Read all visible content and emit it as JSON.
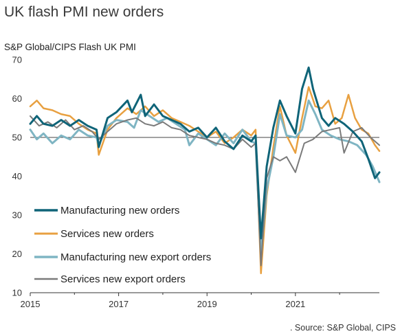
{
  "chart_data": {
    "type": "line",
    "title": "UK flash PMI new orders",
    "subtitle": "S&P Global/CIPS Flash UK PMI",
    "source": ". Source: S&P Global, CIPS",
    "ylim": [
      10,
      70
    ],
    "yticks": [
      10,
      20,
      30,
      40,
      50,
      60,
      70
    ],
    "xlim": [
      2015.0,
      2022.9
    ],
    "xticks": [
      2015,
      2017,
      2019,
      2021
    ],
    "reference_line": 50,
    "legend_position": "lower-left",
    "series": [
      {
        "name": "Manufacturing new orders",
        "color": "#0f6478",
        "width": 3,
        "x": [
          2015.0,
          2015.15,
          2015.3,
          2015.5,
          2015.7,
          2015.9,
          2016.1,
          2016.3,
          2016.5,
          2016.55,
          2016.75,
          2016.95,
          2017.2,
          2017.3,
          2017.5,
          2017.6,
          2017.8,
          2018.0,
          2018.2,
          2018.4,
          2018.6,
          2018.8,
          2019.0,
          2019.2,
          2019.4,
          2019.6,
          2019.8,
          2020.0,
          2020.1,
          2020.22,
          2020.35,
          2020.5,
          2020.65,
          2020.8,
          2021.0,
          2021.15,
          2021.3,
          2021.4,
          2021.6,
          2021.75,
          2021.9,
          2022.1,
          2022.3,
          2022.5,
          2022.65,
          2022.8,
          2022.9
        ],
        "values": [
          53.5,
          55.5,
          53.5,
          53.0,
          54.5,
          53.0,
          54.5,
          53.0,
          52.0,
          47.5,
          55.0,
          56.5,
          59.5,
          56.5,
          61.0,
          55.5,
          58.5,
          55.5,
          54.5,
          53.5,
          51.5,
          52.5,
          50.0,
          52.5,
          49.0,
          47.0,
          50.5,
          49.0,
          50.5,
          24.0,
          42.5,
          52.5,
          59.5,
          55.5,
          51.0,
          62.5,
          68.0,
          62.5,
          55.0,
          53.0,
          55.0,
          53.5,
          51.5,
          49.0,
          44.5,
          39.5,
          41.0
        ]
      },
      {
        "name": "Services new orders",
        "color": "#e8a040",
        "width": 2.5,
        "x": [
          2015.0,
          2015.15,
          2015.3,
          2015.5,
          2015.7,
          2015.9,
          2016.1,
          2016.3,
          2016.5,
          2016.55,
          2016.75,
          2016.95,
          2017.2,
          2017.4,
          2017.6,
          2017.8,
          2018.0,
          2018.2,
          2018.4,
          2018.6,
          2018.8,
          2019.0,
          2019.2,
          2019.4,
          2019.6,
          2019.8,
          2020.0,
          2020.1,
          2020.22,
          2020.35,
          2020.5,
          2020.65,
          2020.8,
          2021.0,
          2021.15,
          2021.3,
          2021.45,
          2021.6,
          2021.75,
          2021.9,
          2022.05,
          2022.2,
          2022.35,
          2022.5,
          2022.65,
          2022.8,
          2022.9
        ],
        "values": [
          58.0,
          59.5,
          57.5,
          57.0,
          56.0,
          55.5,
          53.5,
          52.0,
          51.0,
          45.5,
          52.0,
          55.0,
          57.5,
          56.0,
          58.0,
          55.5,
          57.0,
          55.0,
          54.0,
          53.0,
          51.5,
          50.0,
          51.5,
          48.5,
          50.0,
          52.0,
          50.5,
          52.0,
          15.0,
          35.0,
          47.5,
          58.0,
          50.5,
          46.0,
          55.0,
          63.0,
          58.0,
          57.5,
          59.5,
          53.5,
          55.0,
          61.0,
          55.0,
          52.0,
          51.0,
          48.0,
          46.5
        ]
      },
      {
        "name": "Manufacturing new export orders",
        "color": "#7fb5c3",
        "width": 3,
        "x": [
          2015.0,
          2015.15,
          2015.3,
          2015.5,
          2015.7,
          2015.9,
          2016.1,
          2016.3,
          2016.5,
          2016.55,
          2016.75,
          2016.95,
          2017.2,
          2017.35,
          2017.5,
          2017.7,
          2017.9,
          2018.1,
          2018.3,
          2018.5,
          2018.6,
          2018.8,
          2019.0,
          2019.2,
          2019.4,
          2019.6,
          2019.8,
          2020.0,
          2020.1,
          2020.22,
          2020.35,
          2020.5,
          2020.65,
          2020.8,
          2021.0,
          2021.15,
          2021.3,
          2021.45,
          2021.6,
          2021.8,
          2022.0,
          2022.2,
          2022.4,
          2022.6,
          2022.75,
          2022.9
        ],
        "values": [
          52.0,
          49.5,
          51.0,
          48.5,
          50.5,
          49.5,
          52.0,
          50.5,
          50.0,
          48.0,
          53.0,
          54.5,
          54.0,
          52.5,
          57.0,
          55.5,
          54.0,
          55.0,
          53.5,
          52.0,
          48.0,
          51.0,
          49.5,
          48.0,
          51.0,
          48.5,
          52.0,
          49.0,
          48.5,
          20.0,
          36.5,
          45.0,
          56.0,
          50.5,
          50.0,
          52.0,
          59.5,
          56.0,
          52.0,
          50.5,
          49.5,
          49.0,
          48.0,
          45.5,
          42.5,
          38.5
        ]
      },
      {
        "name": "Services new export orders",
        "color": "#7a7a7a",
        "width": 2,
        "x": [
          2015.0,
          2015.2,
          2015.4,
          2015.6,
          2015.8,
          2016.0,
          2016.2,
          2016.4,
          2016.55,
          2016.75,
          2016.95,
          2017.2,
          2017.4,
          2017.6,
          2017.8,
          2018.0,
          2018.2,
          2018.4,
          2018.6,
          2018.8,
          2019.0,
          2019.2,
          2019.4,
          2019.6,
          2019.8,
          2020.0,
          2020.1,
          2020.22,
          2020.35,
          2020.5,
          2020.65,
          2020.8,
          2021.0,
          2021.2,
          2021.4,
          2021.6,
          2021.8,
          2022.0,
          2022.1,
          2022.3,
          2022.5,
          2022.7,
          2022.9
        ],
        "values": [
          55.5,
          53.0,
          54.0,
          52.5,
          54.5,
          52.0,
          53.0,
          51.5,
          49.5,
          51.5,
          53.5,
          54.5,
          55.0,
          53.5,
          53.0,
          54.0,
          52.5,
          52.0,
          50.5,
          50.0,
          49.5,
          48.5,
          48.0,
          47.0,
          49.5,
          47.5,
          48.5,
          17.0,
          39.5,
          45.0,
          44.0,
          45.0,
          41.0,
          48.5,
          49.5,
          51.5,
          52.0,
          52.5,
          46.0,
          51.5,
          52.5,
          50.0,
          48.0
        ]
      }
    ]
  }
}
